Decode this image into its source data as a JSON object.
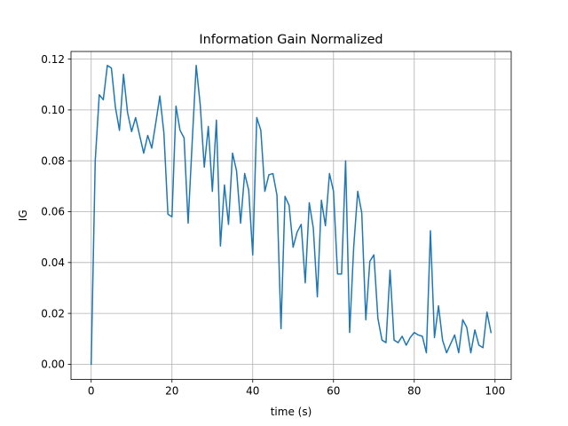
{
  "chart_data": {
    "type": "line",
    "title": "Information Gain Normalized",
    "xlabel": "time (s)",
    "ylabel": "IG",
    "xlim": [
      -5,
      104
    ],
    "ylim": [
      -0.006,
      0.123
    ],
    "x_ticks": [
      0,
      20,
      40,
      60,
      80,
      100
    ],
    "y_ticks": [
      0.0,
      0.02,
      0.04,
      0.06,
      0.08,
      0.1,
      0.12
    ],
    "x_tick_labels": [
      "0",
      "20",
      "40",
      "60",
      "80",
      "100"
    ],
    "y_tick_labels": [
      "0.00",
      "0.02",
      "0.04",
      "0.06",
      "0.08",
      "0.10",
      "0.12"
    ],
    "grid": true,
    "legend": "none",
    "series": [
      {
        "color": "#1f77b4",
        "x": [
          0,
          1,
          2,
          3,
          4,
          5,
          6,
          7,
          8,
          9,
          10,
          11,
          12,
          13,
          14,
          15,
          16,
          17,
          18,
          19,
          20,
          21,
          22,
          23,
          24,
          25,
          26,
          27,
          28,
          29,
          30,
          31,
          32,
          33,
          34,
          35,
          36,
          37,
          38,
          39,
          40,
          41,
          42,
          43,
          44,
          45,
          46,
          47,
          48,
          49,
          50,
          51,
          52,
          53,
          54,
          55,
          56,
          57,
          58,
          59,
          60,
          61,
          62,
          63,
          64,
          65,
          66,
          67,
          68,
          69,
          70,
          71,
          72,
          73,
          74,
          75,
          76,
          77,
          78,
          79,
          80,
          81,
          82,
          83,
          84,
          85,
          86,
          87,
          88,
          89,
          90,
          91,
          92,
          93,
          94,
          95,
          96,
          97,
          98,
          99
        ],
        "y": [
          0.0,
          0.08,
          0.106,
          0.104,
          0.1175,
          0.1165,
          0.101,
          0.092,
          0.114,
          0.099,
          0.0915,
          0.097,
          0.09,
          0.083,
          0.09,
          0.085,
          0.095,
          0.1055,
          0.091,
          0.059,
          0.058,
          0.1015,
          0.092,
          0.089,
          0.0555,
          0.087,
          0.1175,
          0.102,
          0.0775,
          0.0935,
          0.068,
          0.096,
          0.0465,
          0.0705,
          0.055,
          0.083,
          0.076,
          0.0555,
          0.075,
          0.0685,
          0.043,
          0.097,
          0.092,
          0.068,
          0.0745,
          0.075,
          0.0665,
          0.014,
          0.066,
          0.0625,
          0.046,
          0.052,
          0.055,
          0.032,
          0.0635,
          0.0535,
          0.0265,
          0.0645,
          0.0545,
          0.075,
          0.068,
          0.0355,
          0.0355,
          0.08,
          0.0125,
          0.046,
          0.068,
          0.0595,
          0.0175,
          0.0405,
          0.043,
          0.018,
          0.0095,
          0.0085,
          0.037,
          0.0095,
          0.0085,
          0.011,
          0.0075,
          0.0105,
          0.0125,
          0.0115,
          0.011,
          0.0045,
          0.0525,
          0.0105,
          0.023,
          0.0095,
          0.0045,
          0.008,
          0.0115,
          0.0045,
          0.0175,
          0.0145,
          0.0045,
          0.0135,
          0.0075,
          0.0065,
          0.0205,
          0.0125
        ]
      }
    ]
  }
}
